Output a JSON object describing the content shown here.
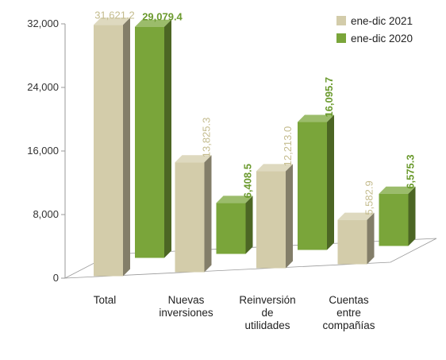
{
  "colors": {
    "series_2021": "#d3ccaa",
    "series_2020": "#7aa53a",
    "label_2021": "#c4bc8e",
    "label_2020": "#6b9a2e",
    "axis": "#999999"
  },
  "chart_data": {
    "type": "bar",
    "style": "3d-clustered-column",
    "title": "",
    "xlabel": "",
    "ylabel": "",
    "ylim": [
      0,
      32000
    ],
    "yticks": [
      "0",
      "8,000",
      "16,000",
      "24,000",
      "32,000"
    ],
    "ytick_values": [
      0,
      8000,
      16000,
      24000,
      32000
    ],
    "grid": false,
    "legend_position": "top-right",
    "categories": [
      [
        "Total"
      ],
      [
        "Nuevas",
        "inversiones"
      ],
      [
        "Reinversión",
        "de",
        "utilidades"
      ],
      [
        "Cuentas",
        "entre",
        "compañías"
      ]
    ],
    "series": [
      {
        "name": "ene-dic 2021",
        "values": [
          31621.2,
          13825.3,
          12213.0,
          5582.9
        ],
        "labels": [
          "31,621.2",
          "13,825.3",
          "12,213.0",
          "5,582.9"
        ]
      },
      {
        "name": "ene-dic 2020",
        "values": [
          29079.4,
          6408.5,
          16095.7,
          6575.3
        ],
        "labels": [
          "29,079.4",
          "6,408.5",
          "16,095.7",
          "6,575.3"
        ]
      }
    ]
  }
}
